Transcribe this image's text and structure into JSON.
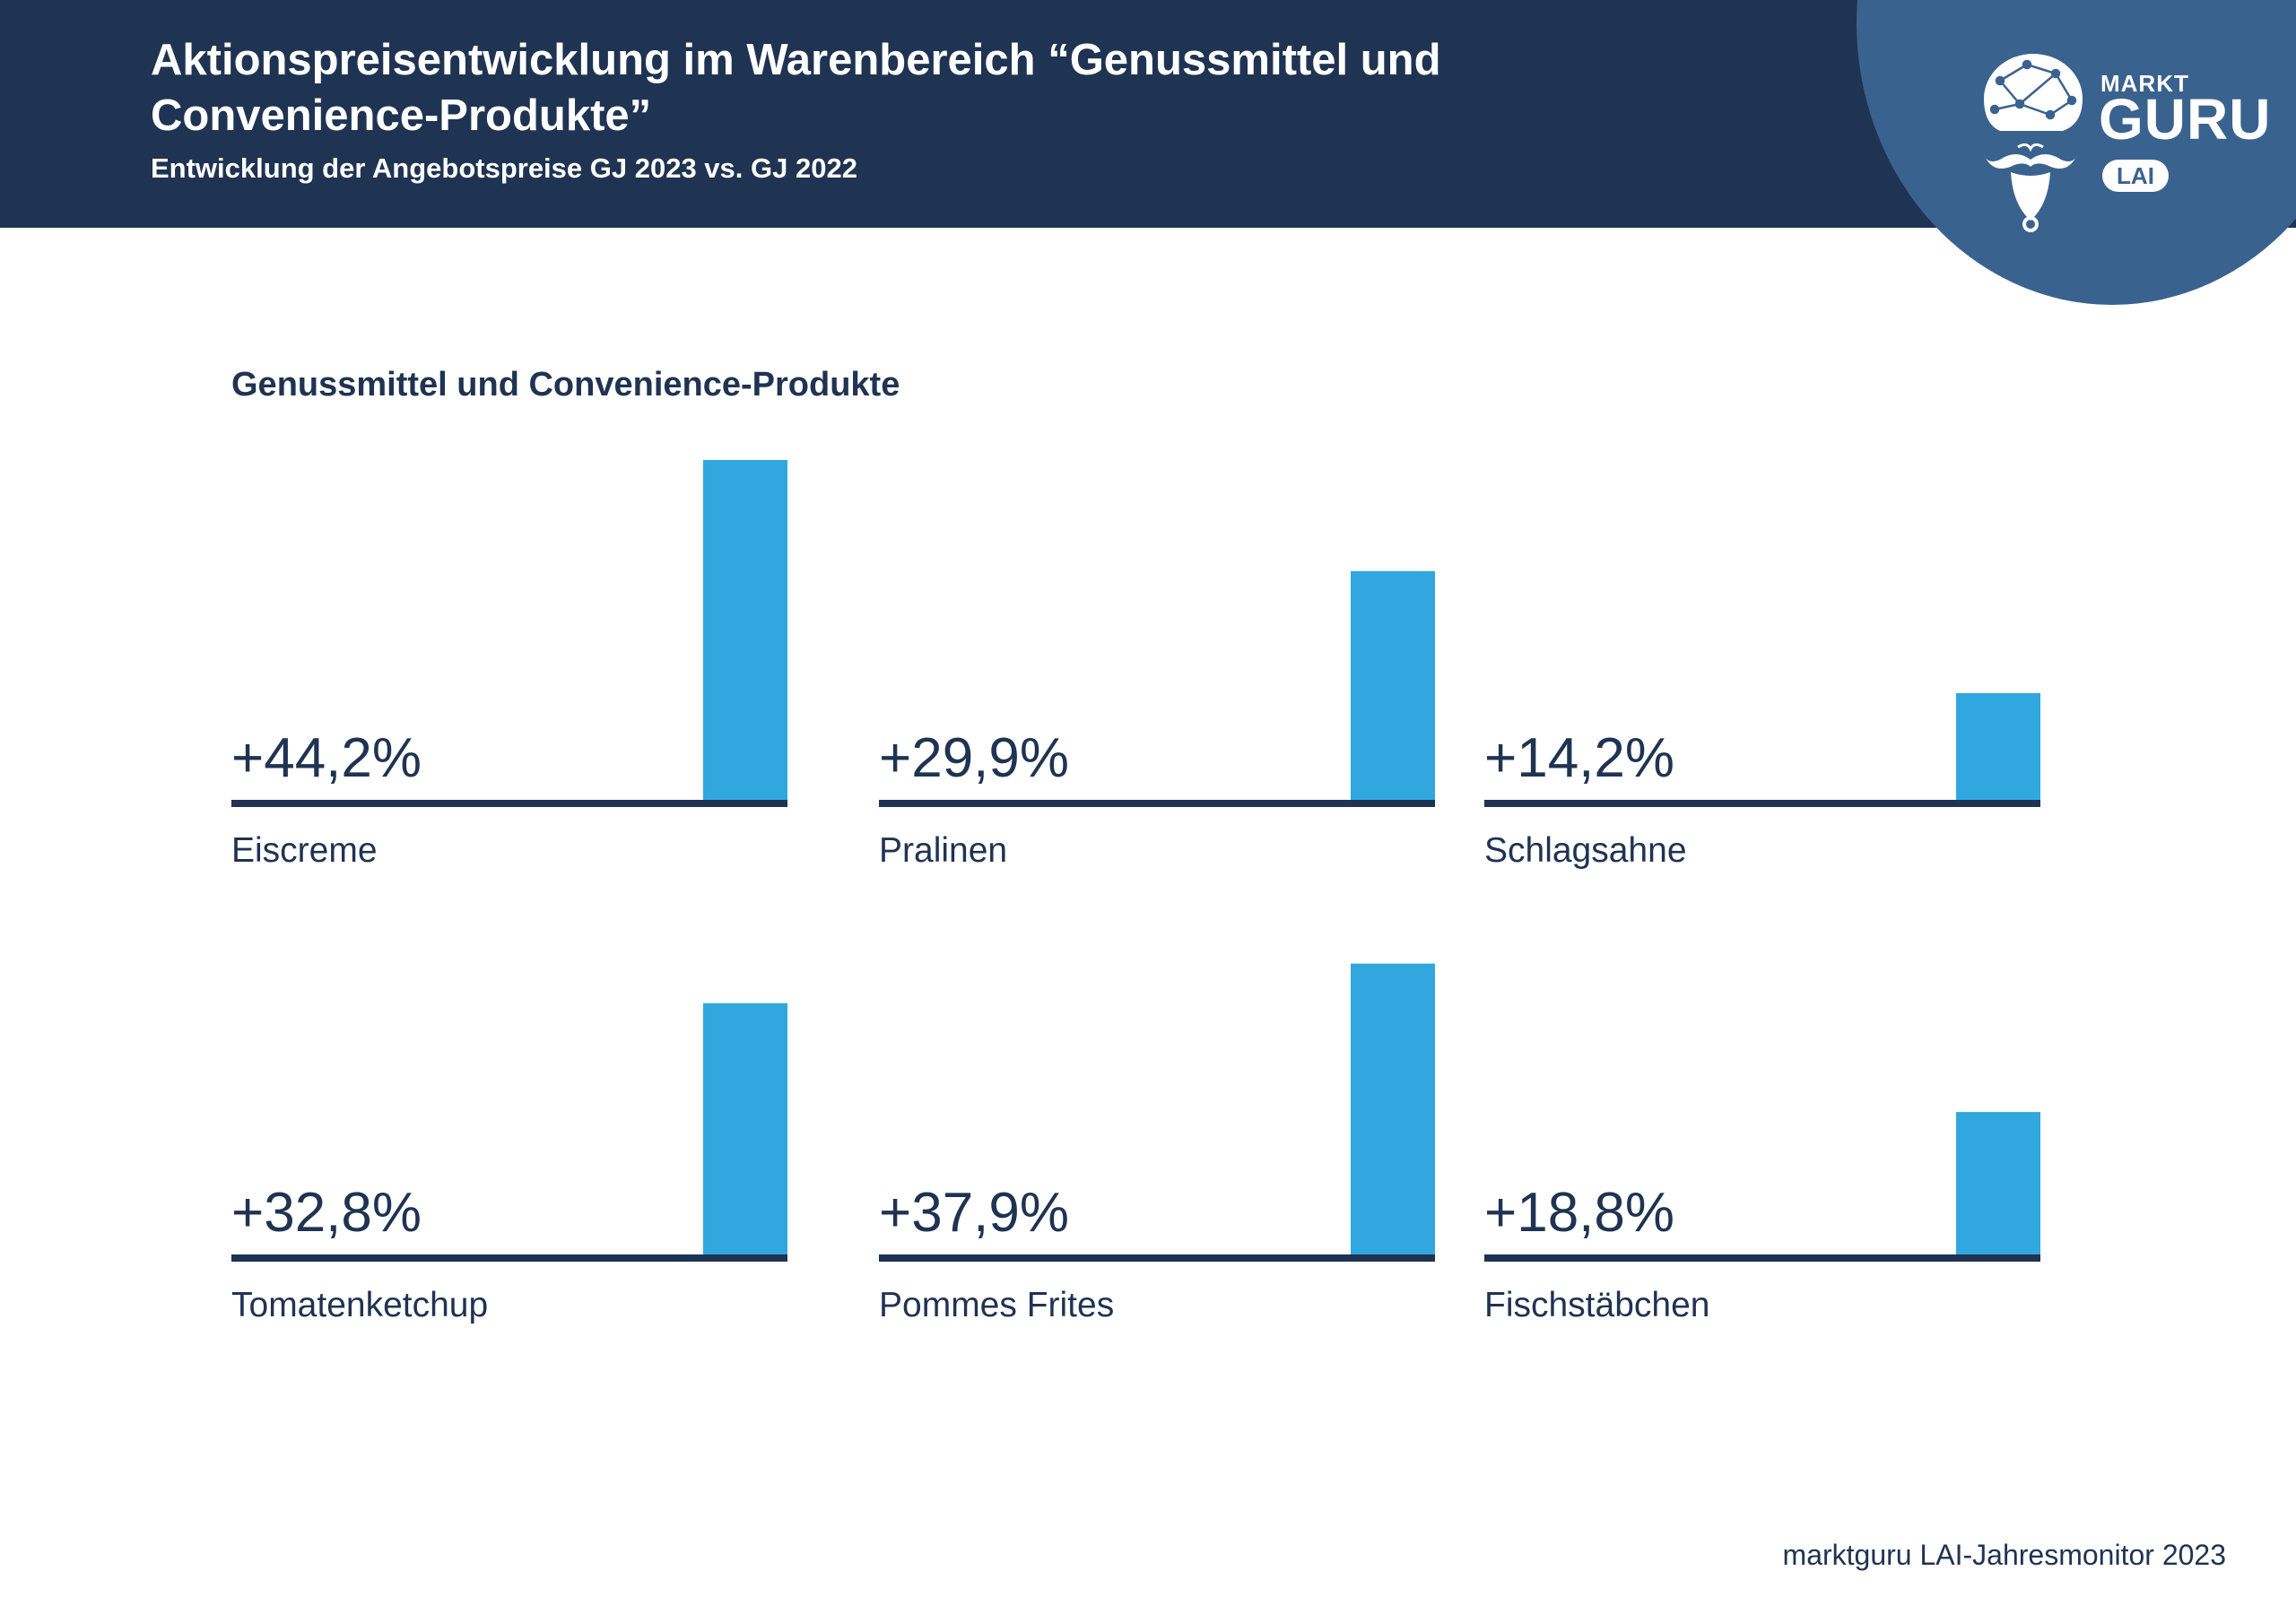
{
  "header": {
    "title_line1": "Aktionspreisentwicklung im Warenbereich “Genussmittel und",
    "title_line2": "Convenience-Produkte”",
    "subtitle": "Entwicklung der Angebotspreise GJ 2023 vs. GJ 2022"
  },
  "logo": {
    "markt": "MARKT",
    "guru": "GURU",
    "lai": "LAI",
    "icon": "guru-mascot-icon"
  },
  "section_title": "Genussmittel und Convenience-Produkte",
  "footer": "marktguru LAI-Jahresmonitor 2023",
  "colors": {
    "header_bg": "#1f3352",
    "logo_circle": "#3a628f",
    "bar": "#31a7df",
    "baseline": "#1f3352",
    "text": "#1f3352"
  },
  "chart_data": [
    {
      "type": "bar",
      "title": "",
      "categories": [
        "Eiscreme"
      ],
      "values": [
        44.2
      ],
      "label": "+44,2%",
      "unit": "%",
      "ylim": [
        0,
        44.2
      ]
    },
    {
      "type": "bar",
      "title": "",
      "categories": [
        "Pralinen"
      ],
      "values": [
        29.9
      ],
      "label": "+29,9%",
      "unit": "%",
      "ylim": [
        0,
        44.2
      ]
    },
    {
      "type": "bar",
      "title": "",
      "categories": [
        "Schlagsahne"
      ],
      "values": [
        14.2
      ],
      "label": "+14,2%",
      "unit": "%",
      "ylim": [
        0,
        44.2
      ]
    },
    {
      "type": "bar",
      "title": "",
      "categories": [
        "Tomatenketchup"
      ],
      "values": [
        32.8
      ],
      "label": "+32,8%",
      "unit": "%",
      "ylim": [
        0,
        44.2
      ]
    },
    {
      "type": "bar",
      "title": "",
      "categories": [
        "Pommes Frites"
      ],
      "values": [
        37.9
      ],
      "label": "+37,9%",
      "unit": "%",
      "ylim": [
        0,
        44.2
      ]
    },
    {
      "type": "bar",
      "title": "",
      "categories": [
        "Fischstäbchen"
      ],
      "values": [
        18.8
      ],
      "label": "+18,8%",
      "unit": "%",
      "ylim": [
        0,
        44.2
      ]
    }
  ]
}
